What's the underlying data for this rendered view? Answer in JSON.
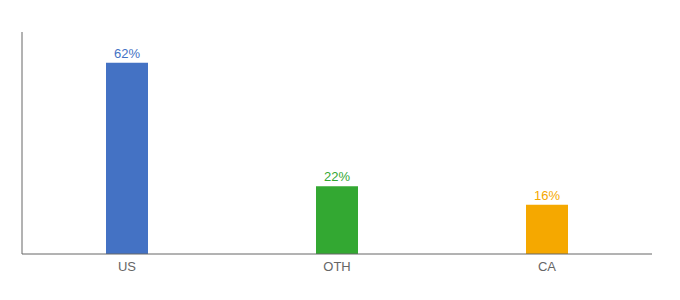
{
  "chart_data": {
    "type": "bar",
    "categories": [
      "US",
      "OTH",
      "CA"
    ],
    "values": [
      62,
      22,
      16
    ],
    "value_labels": [
      "62%",
      "22%",
      "16%"
    ],
    "data_labels": true,
    "colors": [
      "#4472C4",
      "#33A832",
      "#F5A800"
    ],
    "ylim": [
      0,
      72
    ],
    "grid": false,
    "tick_labels": "x"
  }
}
